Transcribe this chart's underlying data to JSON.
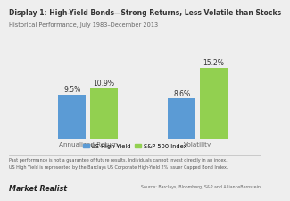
{
  "title": "Display 1: High-Yield Bonds—Strong Returns, Less Volatile than Stocks",
  "subtitle": "Historical Performance, July 1983–December 2013",
  "categories": [
    "Annualized Return",
    "Volatility"
  ],
  "us_high_yield": [
    9.5,
    8.6
  ],
  "sp500": [
    10.9,
    15.2
  ],
  "us_high_yield_labels": [
    "9.5%",
    "8.6%"
  ],
  "sp500_labels": [
    "10.9%",
    "15.2%"
  ],
  "us_high_yield_color": "#5b9bd5",
  "sp500_color": "#92d050",
  "background_color": "#eeeeee",
  "title_color": "#333333",
  "subtitle_color": "#666666",
  "footer_color": "#555555",
  "legend_label_hy": "US High Yield",
  "legend_label_sp": "S&P 500 Index",
  "footer_text1": "Past performance is not a guarantee of future results. Individuals cannot invest directly in an index.",
  "footer_text2": "US High Yield is represented by the Barclays US Corporate High-Yield 2% Issuer Capped Bond Index.",
  "source_text": "Source: Barclays, Bloomberg, S&P and AllianceBernstein",
  "brand_text": "Market Realist",
  "ylim": [
    0,
    17.5
  ],
  "bar_width": 0.25,
  "bar_gap": 0.04
}
